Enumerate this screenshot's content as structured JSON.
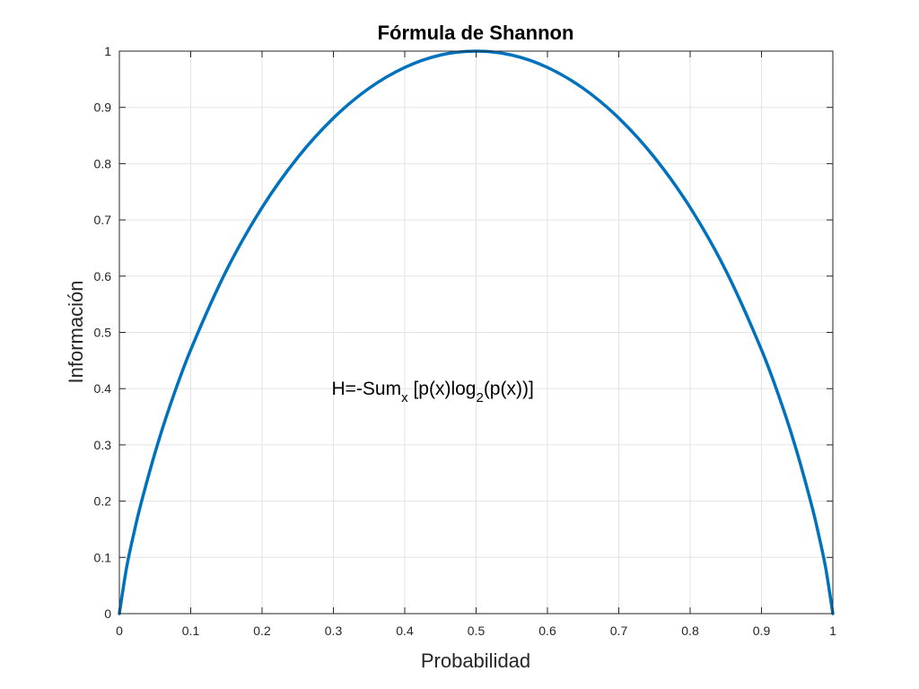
{
  "chart_data": {
    "type": "line",
    "title": "Fórmula de Shannon",
    "xlabel": "Probabilidad",
    "ylabel": "Información",
    "xlim": [
      0,
      1
    ],
    "ylim": [
      0,
      1
    ],
    "x_ticks": [
      "0",
      "0.1",
      "0.2",
      "0.3",
      "0.4",
      "0.5",
      "0.6",
      "0.7",
      "0.8",
      "0.9",
      "1"
    ],
    "y_ticks": [
      "0",
      "0.1",
      "0.2",
      "0.3",
      "0.4",
      "0.5",
      "0.6",
      "0.7",
      "0.8",
      "0.9",
      "1"
    ],
    "grid": true,
    "annotation": {
      "x": 0.3,
      "y": 0.4,
      "main1": "H=-Sum",
      "sub1": "x",
      "main2": " [p(x)log",
      "sub2": "2",
      "main3": "(p(x))]"
    },
    "series": [
      {
        "color": "#0072BD",
        "x": [
          0,
          0.01,
          0.02,
          0.03,
          0.05,
          0.07,
          0.1,
          0.15,
          0.2,
          0.25,
          0.3,
          0.35,
          0.4,
          0.45,
          0.5,
          0.55,
          0.6,
          0.65,
          0.7,
          0.75,
          0.8,
          0.85,
          0.9,
          0.93,
          0.95,
          0.97,
          0.98,
          0.99,
          1
        ],
        "y": [
          0,
          0.081,
          0.141,
          0.194,
          0.286,
          0.366,
          0.469,
          0.61,
          0.722,
          0.811,
          0.881,
          0.934,
          0.971,
          0.993,
          1,
          0.993,
          0.971,
          0.934,
          0.881,
          0.811,
          0.722,
          0.61,
          0.469,
          0.366,
          0.286,
          0.194,
          0.141,
          0.081,
          0
        ]
      }
    ]
  }
}
